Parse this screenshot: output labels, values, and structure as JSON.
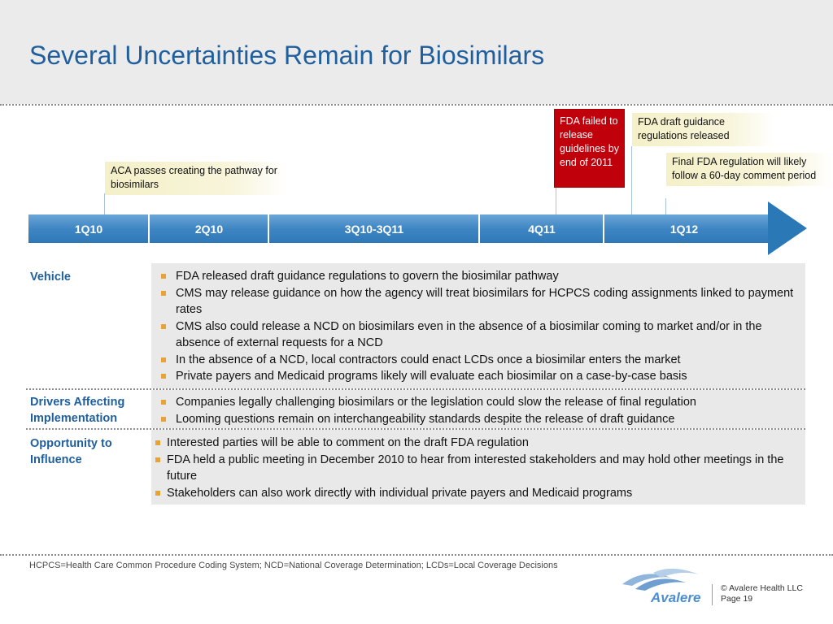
{
  "title": "Several Uncertainties Remain for Biosimilars",
  "callouts": {
    "aca": "ACA passes creating the pathway for biosimilars",
    "fda_failed": "FDA failed to release guidelines by end of 2011",
    "fda_draft": "FDA draft guidance regulations released",
    "fda_final": "Final FDA regulation will likely follow a 60-day comment period"
  },
  "timeline": {
    "segments": [
      "1Q10",
      "2Q10",
      "3Q10-3Q11",
      "4Q11",
      "1Q12"
    ]
  },
  "rows": [
    {
      "label": "Vehicle",
      "items": [
        "FDA released draft guidance regulations to govern the biosimilar pathway",
        "CMS may release guidance on how the agency will treat biosimilars for HCPCS coding assignments linked to payment rates",
        "CMS also could release a NCD on biosimilars even in the absence of a biosimilar coming to market and/or in the absence of external requests for a NCD",
        "In the absence of a NCD, local contractors could enact LCDs once a biosimilar enters the market",
        "Private payers and Medicaid programs likely will evaluate each biosimilar on a case-by-case basis"
      ]
    },
    {
      "label": "Drivers Affecting Implementation",
      "items": [
        "Companies legally challenging biosimilars or the legislation could slow the release of final regulation",
        "Looming questions remain on interchangeability standards despite the release of draft guidance"
      ]
    },
    {
      "label": "Opportunity to Influence",
      "items": [
        "Interested parties will be able to comment on the draft FDA regulation",
        "FDA held a public meeting in December 2010 to hear from interested stakeholders and may hold other meetings in the future",
        "Stakeholders can also work directly with individual private payers and Medicaid programs"
      ]
    }
  ],
  "footnote": "HCPCS=Health Care Common Procedure Coding System; NCD=National Coverage Determination; LCDs=Local Coverage Decisions",
  "logo": {
    "text": "Avalere"
  },
  "copyright": {
    "line1": "© Avalere Health LLC",
    "line2": "Page 19"
  },
  "colors": {
    "title": "#1f5f9e",
    "timeline": "#3e86c3",
    "callout_red": "#c0000b",
    "bullet": "#e8a236"
  }
}
